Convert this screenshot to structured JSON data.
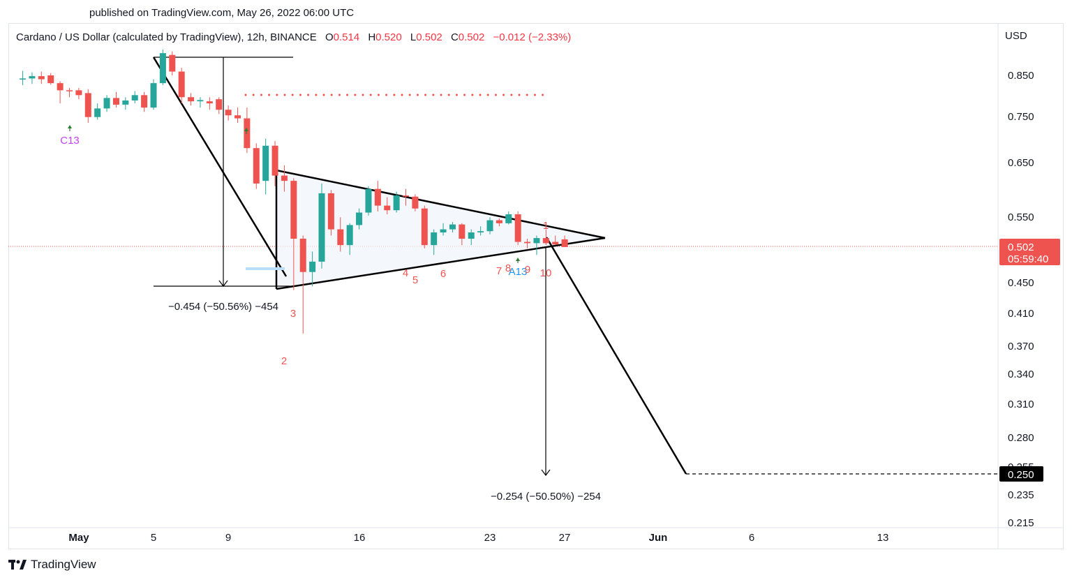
{
  "header": {
    "published": "published on TradingView.com, May 26, 2022 06:00 UTC"
  },
  "legend": {
    "symbol": "Cardano / US Dollar (calculated by TradingView), 12h, BINANCE",
    "o_label": "O",
    "o_value": "0.514",
    "h_label": "H",
    "h_value": "0.520",
    "l_label": "L",
    "l_value": "0.502",
    "c_label": "C",
    "c_value": "0.502",
    "change": "−0.012 (−2.33%)"
  },
  "brand": {
    "name": "TradingView"
  },
  "colors": {
    "up": "#26a69a",
    "down": "#ef5350",
    "grid": "#e0e3eb",
    "text": "#131722",
    "purple": "#c542f5",
    "blue": "#2196f3",
    "green_arrow": "#2e7d32",
    "resistance_dots": "#ef5350"
  },
  "chart_data": {
    "type": "candlestick",
    "symbol": "ADA/USD",
    "interval": "12h",
    "currency_label": "USD",
    "y_ticks": [
      "0.850",
      "0.750",
      "0.650",
      "0.550",
      "0.450",
      "0.410",
      "0.370",
      "0.340",
      "0.310",
      "0.280",
      "0.255",
      "0.235",
      "0.215"
    ],
    "x_ticks": [
      {
        "label": "May",
        "date": "2022-05-01"
      },
      {
        "label": "5",
        "date": "2022-05-05"
      },
      {
        "label": "9",
        "date": "2022-05-09"
      },
      {
        "label": "16",
        "date": "2022-05-16"
      },
      {
        "label": "23",
        "date": "2022-05-23"
      },
      {
        "label": "27",
        "date": "2022-05-27"
      },
      {
        "label": "Jun",
        "date": "2022-06-01"
      },
      {
        "label": "6",
        "date": "2022-06-06"
      },
      {
        "label": "13",
        "date": "2022-06-13"
      }
    ],
    "current_price": {
      "value": "0.502",
      "countdown": "05:59:40"
    },
    "target_price": {
      "value": "0.250"
    },
    "candles": [
      {
        "t": "2022-04-28 00:00",
        "o": 0.84,
        "h": 0.862,
        "l": 0.825,
        "c": 0.842
      },
      {
        "t": "2022-04-28 12:00",
        "o": 0.842,
        "h": 0.858,
        "l": 0.828,
        "c": 0.848
      },
      {
        "t": "2022-04-29 00:00",
        "o": 0.848,
        "h": 0.86,
        "l": 0.828,
        "c": 0.84
      },
      {
        "t": "2022-04-29 12:00",
        "o": 0.85,
        "h": 0.856,
        "l": 0.826,
        "c": 0.83
      },
      {
        "t": "2022-04-30 00:00",
        "o": 0.83,
        "h": 0.835,
        "l": 0.78,
        "c": 0.812
      },
      {
        "t": "2022-04-30 12:00",
        "o": 0.812,
        "h": 0.818,
        "l": 0.795,
        "c": 0.81
      },
      {
        "t": "2022-05-01 00:00",
        "o": 0.812,
        "h": 0.818,
        "l": 0.79,
        "c": 0.8
      },
      {
        "t": "2022-05-01 12:00",
        "o": 0.805,
        "h": 0.815,
        "l": 0.735,
        "c": 0.748
      },
      {
        "t": "2022-05-02 00:00",
        "o": 0.748,
        "h": 0.78,
        "l": 0.742,
        "c": 0.768
      },
      {
        "t": "2022-05-02 12:00",
        "o": 0.768,
        "h": 0.8,
        "l": 0.76,
        "c": 0.793
      },
      {
        "t": "2022-05-03 00:00",
        "o": 0.793,
        "h": 0.808,
        "l": 0.77,
        "c": 0.777
      },
      {
        "t": "2022-05-03 12:00",
        "o": 0.777,
        "h": 0.795,
        "l": 0.765,
        "c": 0.787
      },
      {
        "t": "2022-05-04 00:00",
        "o": 0.787,
        "h": 0.81,
        "l": 0.78,
        "c": 0.8
      },
      {
        "t": "2022-05-04 12:00",
        "o": 0.8,
        "h": 0.808,
        "l": 0.76,
        "c": 0.77
      },
      {
        "t": "2022-05-05 00:00",
        "o": 0.77,
        "h": 0.84,
        "l": 0.765,
        "c": 0.83
      },
      {
        "t": "2022-05-05 12:00",
        "o": 0.83,
        "h": 0.92,
        "l": 0.825,
        "c": 0.91
      },
      {
        "t": "2022-05-06 00:00",
        "o": 0.905,
        "h": 0.915,
        "l": 0.85,
        "c": 0.86
      },
      {
        "t": "2022-05-06 12:00",
        "o": 0.86,
        "h": 0.87,
        "l": 0.78,
        "c": 0.795
      },
      {
        "t": "2022-05-07 00:00",
        "o": 0.795,
        "h": 0.805,
        "l": 0.775,
        "c": 0.785
      },
      {
        "t": "2022-05-07 12:00",
        "o": 0.785,
        "h": 0.795,
        "l": 0.77,
        "c": 0.788
      },
      {
        "t": "2022-05-08 00:00",
        "o": 0.785,
        "h": 0.795,
        "l": 0.765,
        "c": 0.78
      },
      {
        "t": "2022-05-08 12:00",
        "o": 0.79,
        "h": 0.795,
        "l": 0.755,
        "c": 0.765
      },
      {
        "t": "2022-05-09 00:00",
        "o": 0.765,
        "h": 0.775,
        "l": 0.74,
        "c": 0.752
      },
      {
        "t": "2022-05-09 12:00",
        "o": 0.752,
        "h": 0.77,
        "l": 0.735,
        "c": 0.745
      },
      {
        "t": "2022-05-10 00:00",
        "o": 0.745,
        "h": 0.77,
        "l": 0.67,
        "c": 0.68
      },
      {
        "t": "2022-05-10 12:00",
        "o": 0.68,
        "h": 0.69,
        "l": 0.6,
        "c": 0.61
      },
      {
        "t": "2022-05-11 00:00",
        "o": 0.615,
        "h": 0.7,
        "l": 0.59,
        "c": 0.685
      },
      {
        "t": "2022-05-11 12:00",
        "o": 0.685,
        "h": 0.695,
        "l": 0.605,
        "c": 0.625
      },
      {
        "t": "2022-05-12 00:00",
        "o": 0.625,
        "h": 0.645,
        "l": 0.595,
        "c": 0.615
      },
      {
        "t": "2022-05-12 12:00",
        "o": 0.615,
        "h": 0.62,
        "l": 0.44,
        "c": 0.515
      },
      {
        "t": "2022-05-13 00:00",
        "o": 0.515,
        "h": 0.52,
        "l": 0.385,
        "c": 0.465
      },
      {
        "t": "2022-05-13 12:00",
        "o": 0.465,
        "h": 0.495,
        "l": 0.445,
        "c": 0.48
      },
      {
        "t": "2022-05-14 00:00",
        "o": 0.48,
        "h": 0.61,
        "l": 0.47,
        "c": 0.592
      },
      {
        "t": "2022-05-14 12:00",
        "o": 0.592,
        "h": 0.598,
        "l": 0.52,
        "c": 0.53
      },
      {
        "t": "2022-05-15 00:00",
        "o": 0.53,
        "h": 0.55,
        "l": 0.495,
        "c": 0.505
      },
      {
        "t": "2022-05-15 12:00",
        "o": 0.505,
        "h": 0.54,
        "l": 0.49,
        "c": 0.537
      },
      {
        "t": "2022-05-16 00:00",
        "o": 0.537,
        "h": 0.565,
        "l": 0.53,
        "c": 0.558
      },
      {
        "t": "2022-05-16 12:00",
        "o": 0.558,
        "h": 0.605,
        "l": 0.553,
        "c": 0.6
      },
      {
        "t": "2022-05-17 00:00",
        "o": 0.6,
        "h": 0.615,
        "l": 0.56,
        "c": 0.57
      },
      {
        "t": "2022-05-17 12:00",
        "o": 0.57,
        "h": 0.585,
        "l": 0.555,
        "c": 0.562
      },
      {
        "t": "2022-05-18 00:00",
        "o": 0.562,
        "h": 0.595,
        "l": 0.558,
        "c": 0.588
      },
      {
        "t": "2022-05-18 12:00",
        "o": 0.588,
        "h": 0.6,
        "l": 0.57,
        "c": 0.586
      },
      {
        "t": "2022-05-19 00:00",
        "o": 0.586,
        "h": 0.59,
        "l": 0.56,
        "c": 0.565
      },
      {
        "t": "2022-05-19 12:00",
        "o": 0.565,
        "h": 0.57,
        "l": 0.5,
        "c": 0.505
      },
      {
        "t": "2022-05-20 00:00",
        "o": 0.505,
        "h": 0.53,
        "l": 0.49,
        "c": 0.525
      },
      {
        "t": "2022-05-20 12:00",
        "o": 0.525,
        "h": 0.54,
        "l": 0.52,
        "c": 0.53
      },
      {
        "t": "2022-05-21 00:00",
        "o": 0.53,
        "h": 0.542,
        "l": 0.525,
        "c": 0.538
      },
      {
        "t": "2022-05-21 12:00",
        "o": 0.538,
        "h": 0.54,
        "l": 0.505,
        "c": 0.515
      },
      {
        "t": "2022-05-22 00:00",
        "o": 0.515,
        "h": 0.53,
        "l": 0.505,
        "c": 0.525
      },
      {
        "t": "2022-05-22 12:00",
        "o": 0.525,
        "h": 0.535,
        "l": 0.52,
        "c": 0.527
      },
      {
        "t": "2022-05-23 00:00",
        "o": 0.527,
        "h": 0.55,
        "l": 0.522,
        "c": 0.545
      },
      {
        "t": "2022-05-23 12:00",
        "o": 0.545,
        "h": 0.548,
        "l": 0.535,
        "c": 0.54
      },
      {
        "t": "2022-05-24 00:00",
        "o": 0.54,
        "h": 0.56,
        "l": 0.538,
        "c": 0.555
      },
      {
        "t": "2022-05-24 12:00",
        "o": 0.555,
        "h": 0.56,
        "l": 0.505,
        "c": 0.51
      },
      {
        "t": "2022-05-25 00:00",
        "o": 0.51,
        "h": 0.515,
        "l": 0.5,
        "c": 0.508
      },
      {
        "t": "2022-05-25 12:00",
        "o": 0.508,
        "h": 0.52,
        "l": 0.49,
        "c": 0.516
      },
      {
        "t": "2022-05-26 00:00",
        "o": 0.516,
        "h": 0.53,
        "l": 0.505,
        "c": 0.508
      },
      {
        "t": "2022-05-26 12:00",
        "o": 0.51,
        "h": 0.52,
        "l": 0.505,
        "c": 0.506
      },
      {
        "t": "2022-05-27 00:00",
        "o": 0.514,
        "h": 0.52,
        "l": 0.502,
        "c": 0.502
      }
    ],
    "annotations": {
      "measure_1_text": "−0.454 (−50.56%) −454",
      "measure_2_text": "−0.254 (−50.50%) −254",
      "c13": "C13",
      "a13": "A13",
      "count_9_top": "9",
      "count_1": "1",
      "count_2": "2",
      "count_3": "3",
      "count_4": "4",
      "count_5": "5",
      "count_6": "6",
      "count_7": "7",
      "count_8": "8",
      "count_9": "9",
      "count_10": "10"
    }
  }
}
